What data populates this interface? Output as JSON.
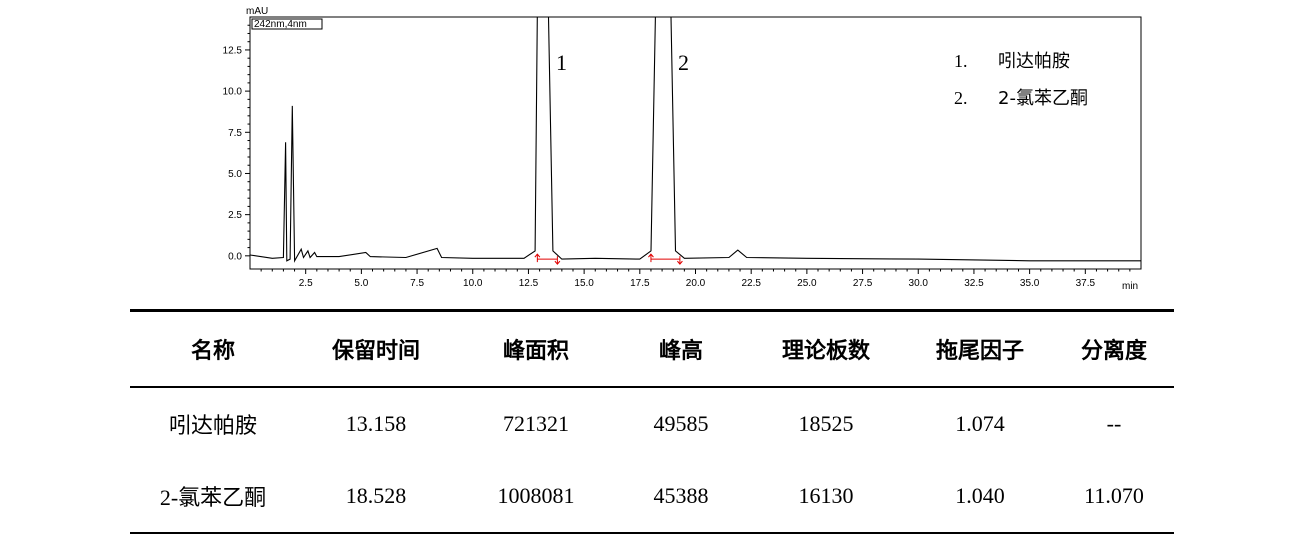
{
  "chart_data": {
    "type": "line",
    "yunit": "mAU",
    "xunit": "min",
    "channel": "242nm,4nm",
    "xlim": [
      0,
      40
    ],
    "ylim": [
      -0.8,
      14.5
    ],
    "xticks": [
      2.5,
      5.0,
      7.5,
      10.0,
      12.5,
      15.0,
      17.5,
      20.0,
      22.5,
      25.0,
      27.5,
      30.0,
      32.5,
      35.0,
      37.5
    ],
    "xtick_labels": [
      "2.5",
      "5.0",
      "7.5",
      "10.0",
      "12.5",
      "15.0",
      "17.5",
      "20.0",
      "22.5",
      "25.0",
      "27.5",
      "30.0",
      "32.5",
      "35.0",
      "37.5"
    ],
    "yticks": [
      0.0,
      2.5,
      5.0,
      7.5,
      10.0,
      12.5
    ],
    "ytick_labels": [
      "0.0",
      "2.5",
      "5.0",
      "7.5",
      "10.0",
      "12.5"
    ],
    "peak_labels": [
      {
        "text": "1",
        "x": 13.2
      },
      {
        "text": "2",
        "x": 18.5
      }
    ],
    "legend": [
      "1.",
      "吲达帕胺",
      "2.",
      "2-氯苯乙酮"
    ],
    "series": [
      {
        "points": [
          [
            0.0,
            0.05
          ],
          [
            1.0,
            -0.15
          ],
          [
            1.5,
            -0.1
          ],
          [
            1.6,
            6.9
          ],
          [
            1.65,
            -0.3
          ],
          [
            1.8,
            -0.2
          ],
          [
            1.9,
            9.1
          ],
          [
            2.0,
            -0.3
          ],
          [
            2.3,
            0.4
          ],
          [
            2.4,
            -0.1
          ],
          [
            2.6,
            0.3
          ],
          [
            2.7,
            -0.1
          ],
          [
            2.9,
            0.2
          ],
          [
            3.0,
            -0.05
          ],
          [
            4.0,
            -0.05
          ],
          [
            5.2,
            0.2
          ],
          [
            5.4,
            -0.05
          ],
          [
            7.0,
            -0.1
          ],
          [
            8.4,
            0.45
          ],
          [
            8.6,
            -0.1
          ],
          [
            10.0,
            -0.15
          ],
          [
            12.3,
            -0.15
          ],
          [
            12.8,
            0.3
          ],
          [
            12.9,
            14.5
          ],
          [
            13.4,
            14.5
          ],
          [
            13.6,
            0.3
          ],
          [
            14.0,
            -0.2
          ],
          [
            15.5,
            -0.15
          ],
          [
            17.5,
            -0.2
          ],
          [
            18.0,
            0.3
          ],
          [
            18.2,
            14.5
          ],
          [
            18.9,
            14.5
          ],
          [
            19.1,
            0.3
          ],
          [
            19.5,
            -0.15
          ],
          [
            21.5,
            -0.1
          ],
          [
            21.9,
            0.35
          ],
          [
            22.3,
            -0.1
          ],
          [
            25.0,
            -0.15
          ],
          [
            30.0,
            -0.2
          ],
          [
            35.0,
            -0.3
          ],
          [
            40.0,
            -0.3
          ]
        ]
      }
    ],
    "integration_markers": [
      12.9,
      13.8,
      18.0,
      19.3
    ]
  },
  "table": {
    "headers": [
      "名称",
      "保留时间",
      "峰面积",
      "峰高",
      "理论板数",
      "拖尾因子",
      "分离度"
    ],
    "rows": [
      [
        "吲达帕胺",
        "13.158",
        "721321",
        "49585",
        "18525",
        "1.074",
        "--"
      ],
      [
        "2-氯苯乙酮",
        "18.528",
        "1008081",
        "45388",
        "16130",
        "1.040",
        "11.070"
      ]
    ]
  },
  "colors": {
    "trace": "#000000",
    "marker": "#e00000"
  }
}
